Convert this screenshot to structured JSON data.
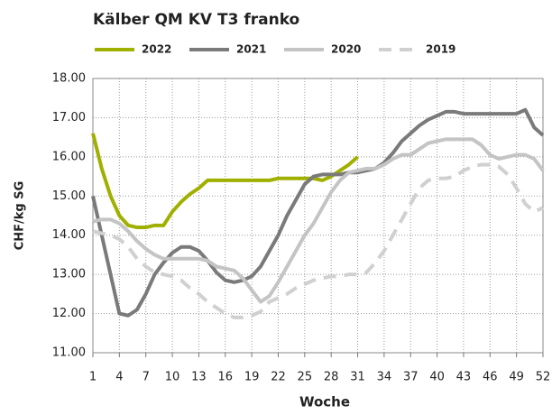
{
  "chart_data": {
    "type": "line",
    "title": "Kälber QM KV T3 franko",
    "x_label": "Woche",
    "y_label": "CHF/kg SG",
    "x": [
      1,
      2,
      3,
      4,
      5,
      6,
      7,
      8,
      9,
      10,
      11,
      12,
      13,
      14,
      15,
      16,
      17,
      18,
      19,
      20,
      21,
      22,
      23,
      24,
      25,
      26,
      27,
      28,
      29,
      30,
      31,
      32,
      33,
      34,
      35,
      36,
      37,
      38,
      39,
      40,
      41,
      42,
      43,
      44,
      45,
      46,
      47,
      48,
      49,
      50,
      51,
      52
    ],
    "xlim": [
      1,
      52
    ],
    "xticks": [
      1,
      4,
      7,
      10,
      13,
      16,
      19,
      22,
      25,
      28,
      31,
      34,
      37,
      40,
      43,
      46,
      49,
      52
    ],
    "ylim": [
      11,
      18
    ],
    "yticks": [
      {
        "value": 11,
        "label": "11.00"
      },
      {
        "value": 12,
        "label": "12.00"
      },
      {
        "value": 13,
        "label": "13.00"
      },
      {
        "value": 14,
        "label": "14.00"
      },
      {
        "value": 15,
        "label": "15.00"
      },
      {
        "value": 16,
        "label": "16.00"
      },
      {
        "value": 17,
        "label": "17.00"
      },
      {
        "value": 18,
        "label": "18.00"
      }
    ],
    "grid": true,
    "legend": "top",
    "series": [
      {
        "name": "2022",
        "color": "#a0b000",
        "dashed": false,
        "values": [
          16.6,
          15.7,
          15.0,
          14.5,
          14.25,
          14.2,
          14.2,
          14.25,
          14.25,
          14.6,
          14.85,
          15.05,
          15.2,
          15.4,
          15.4,
          15.4,
          15.4,
          15.4,
          15.4,
          15.4,
          15.4,
          15.45,
          15.45,
          15.45,
          15.45,
          15.45,
          15.4,
          15.5,
          15.65,
          15.8,
          16.0,
          null,
          null,
          null,
          null,
          null,
          null,
          null,
          null,
          null,
          null,
          null,
          null,
          null,
          null,
          null,
          null,
          null,
          null,
          null,
          null,
          null
        ]
      },
      {
        "name": "2021",
        "color": "#7a7a7a",
        "dashed": false,
        "values": [
          15.0,
          14.0,
          13.0,
          12.0,
          11.95,
          12.1,
          12.5,
          13.0,
          13.3,
          13.55,
          13.7,
          13.7,
          13.6,
          13.35,
          13.05,
          12.85,
          12.8,
          12.85,
          12.95,
          13.2,
          13.6,
          14.0,
          14.5,
          14.9,
          15.3,
          15.5,
          15.55,
          15.55,
          15.55,
          15.6,
          15.6,
          15.65,
          15.7,
          15.85,
          16.1,
          16.4,
          16.6,
          16.8,
          16.95,
          17.05,
          17.15,
          17.15,
          17.1,
          17.1,
          17.1,
          17.1,
          17.1,
          17.1,
          17.1,
          17.2,
          16.75,
          16.55
        ]
      },
      {
        "name": "2020",
        "color": "#c4c4c4",
        "dashed": false,
        "values": [
          14.35,
          14.4,
          14.4,
          14.3,
          14.1,
          13.85,
          13.65,
          13.5,
          13.4,
          13.4,
          13.4,
          13.4,
          13.4,
          13.35,
          13.2,
          13.15,
          13.1,
          12.9,
          12.6,
          12.3,
          12.45,
          12.8,
          13.2,
          13.6,
          14.0,
          14.3,
          14.7,
          15.1,
          15.4,
          15.6,
          15.65,
          15.7,
          15.7,
          15.8,
          15.95,
          16.05,
          16.05,
          16.2,
          16.35,
          16.4,
          16.45,
          16.45,
          16.45,
          16.45,
          16.3,
          16.05,
          15.95,
          16.0,
          16.05,
          16.05,
          15.95,
          15.65
        ]
      },
      {
        "name": "2019",
        "color": "#d0d0d0",
        "dashed": true,
        "values": [
          14.1,
          14.05,
          14.0,
          13.9,
          13.7,
          13.4,
          13.2,
          13.05,
          13.0,
          12.95,
          12.85,
          12.65,
          12.5,
          12.3,
          12.15,
          12.0,
          11.9,
          11.9,
          11.95,
          12.05,
          12.3,
          12.4,
          12.5,
          12.65,
          12.75,
          12.85,
          12.9,
          12.95,
          12.95,
          13.0,
          13.0,
          13.05,
          13.3,
          13.6,
          14.0,
          14.4,
          14.8,
          15.2,
          15.4,
          15.45,
          15.45,
          15.5,
          15.65,
          15.75,
          15.8,
          15.8,
          15.75,
          15.55,
          15.2,
          14.8,
          14.6,
          14.7
        ]
      }
    ]
  }
}
